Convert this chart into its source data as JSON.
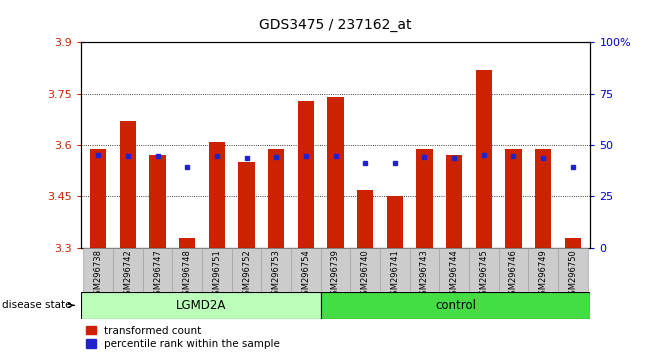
{
  "title": "GDS3475 / 237162_at",
  "samples": [
    "GSM296738",
    "GSM296742",
    "GSM296747",
    "GSM296748",
    "GSM296751",
    "GSM296752",
    "GSM296753",
    "GSM296754",
    "GSM296739",
    "GSM296740",
    "GSM296741",
    "GSM296743",
    "GSM296744",
    "GSM296745",
    "GSM296746",
    "GSM296749",
    "GSM296750"
  ],
  "bar_values": [
    3.59,
    3.67,
    3.57,
    3.33,
    3.61,
    3.55,
    3.59,
    3.73,
    3.74,
    3.47,
    3.45,
    3.59,
    3.57,
    3.82,
    3.59,
    3.59,
    3.33
  ],
  "percentile_positions": [
    3.572,
    3.568,
    3.568,
    3.535,
    3.568,
    3.562,
    3.564,
    3.568,
    3.568,
    3.548,
    3.548,
    3.564,
    3.562,
    3.572,
    3.568,
    3.562,
    3.535
  ],
  "ymin": 3.3,
  "ymax": 3.9,
  "yticks": [
    3.3,
    3.45,
    3.6,
    3.75,
    3.9
  ],
  "right_ytick_pct": [
    0,
    25,
    50,
    75,
    100
  ],
  "bar_color": "#CC2200",
  "percentile_color": "#2222CC",
  "bar_width": 0.55,
  "lgmd2a_color": "#BBFFBB",
  "control_color": "#44DD44",
  "legend_items": [
    "transformed count",
    "percentile rank within the sample"
  ],
  "legend_colors": [
    "#CC2200",
    "#2222CC"
  ],
  "disease_state_label": "disease state",
  "ylabel_right_color": "#0000CC",
  "tick_label_color": "#CC2200",
  "n_lgmd": 8,
  "n_ctrl": 9
}
